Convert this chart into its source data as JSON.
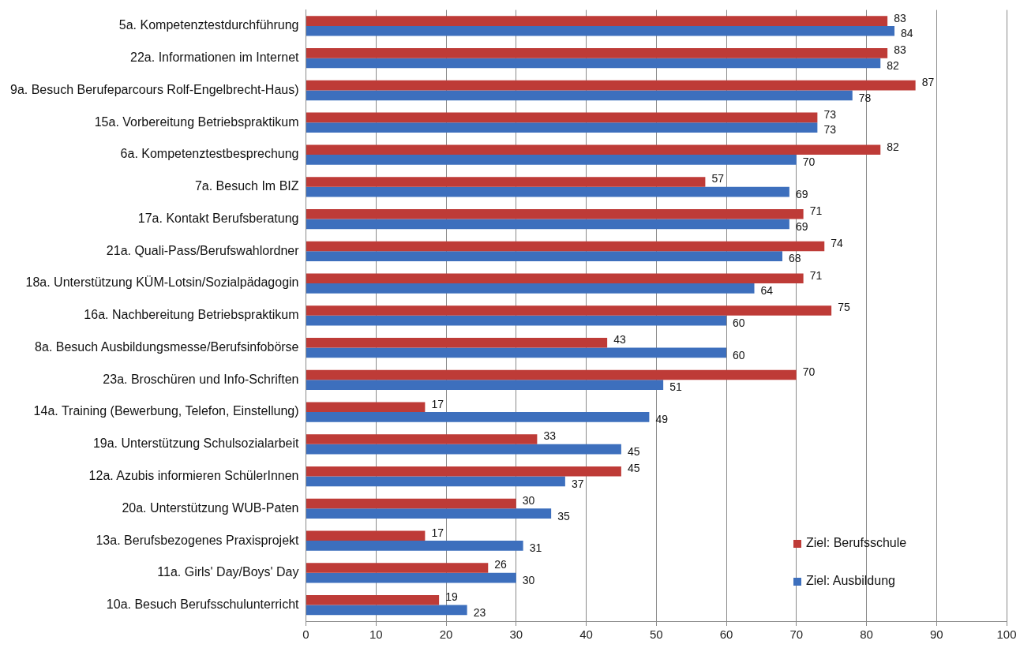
{
  "chart_data": {
    "type": "bar",
    "orientation": "horizontal",
    "categories": [
      "5a. Kompetenztestdurchführung",
      "22a. Informationen im Internet",
      "9a. Besuch Berufeparcours Rolf-Engelbrecht-Haus)",
      "15a. Vorbereitung Betriebspraktikum",
      "6a. Kompetenztestbesprechung",
      "7a. Besuch Im BIZ",
      "17a. Kontakt Berufsberatung",
      "21a. Quali-Pass/Berufswahlordner",
      "18a. Unterstützung KÜM-Lotsin/Sozialpädagogin",
      "16a. Nachbereitung Betriebspraktikum",
      "8a. Besuch Ausbildungsmesse/Berufsinfobörse",
      "23a. Broschüren und Info-Schriften",
      "14a. Training (Bewerbung, Telefon, Einstellung)",
      "19a. Unterstützung Schulsozialarbeit",
      "12a. Azubis informieren SchülerInnen",
      "20a. Unterstützung WUB-Paten",
      "13a. Berufsbezogenes Praxisprojekt",
      "11a. Girls' Day/Boys' Day",
      "10a. Besuch Berufsschulunterricht"
    ],
    "series": [
      {
        "name": "Ziel: Berufsschule",
        "color": "#be3b37",
        "values": [
          83,
          83,
          87,
          73,
          82,
          57,
          71,
          74,
          71,
          75,
          43,
          70,
          17,
          33,
          45,
          30,
          17,
          26,
          19
        ]
      },
      {
        "name": "Ziel: Ausbildung",
        "color": "#3d6fbd",
        "values": [
          84,
          82,
          78,
          73,
          70,
          69,
          69,
          68,
          64,
          60,
          60,
          51,
          49,
          45,
          37,
          35,
          31,
          30,
          23
        ]
      }
    ],
    "xlim": [
      0,
      100
    ],
    "xticks": [
      0,
      10,
      20,
      30,
      40,
      50,
      60,
      70,
      80,
      90,
      100
    ],
    "grid": "x",
    "legend": "bottom right",
    "data_labels": true
  }
}
